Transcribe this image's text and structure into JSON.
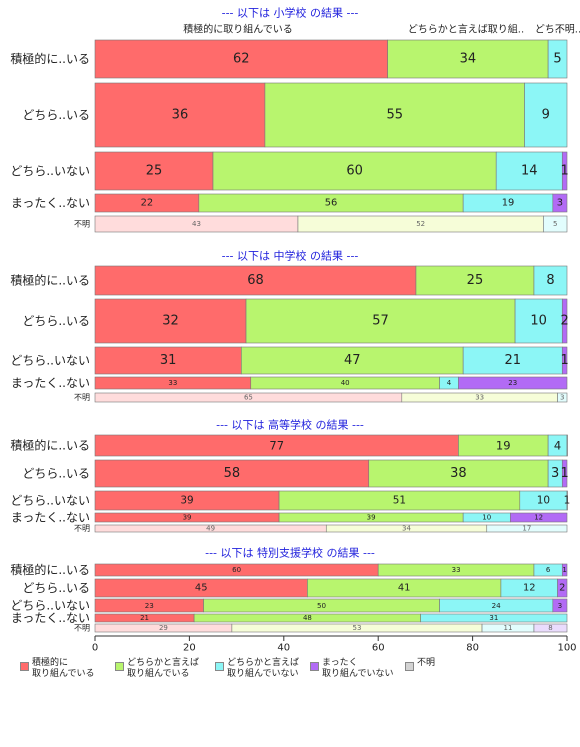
{
  "chart_data": {
    "type": "bar",
    "orientation": "horizontal",
    "stacked": true,
    "xlim": [
      0,
      100
    ],
    "x_ticks": [
      "0",
      "20",
      "40",
      "60",
      "80",
      "100"
    ],
    "categories": [
      "積極的に..いる",
      "どちら..いる",
      "どちら..いない",
      "まったく..ない",
      "不明"
    ],
    "series": [
      {
        "name": "積極的に\n取り組んでいる",
        "color": "#FF6B6B"
      },
      {
        "name": "どちらかと言えば\n取り組んでいる",
        "color": "#B8F56E"
      },
      {
        "name": "どちらかと言えば\n取り組んでいない",
        "color": "#8CF6F6"
      },
      {
        "name": "まったく\n取り組んでいない",
        "color": "#B26BF5"
      },
      {
        "name": "不明",
        "color": "#D3D3D3"
      }
    ],
    "panels": [
      {
        "title": "--- 以下は 小学校 の結果 ---",
        "column_labels": [
          "積極的に取り組んでいる",
          "どちらかと言えば取り組..",
          "どち..",
          "不明.."
        ],
        "rows": [
          {
            "label": "積極的に..いる",
            "values": [
              62,
              34,
              5,
              0
            ],
            "labels": [
              "62",
              "34",
              "5",
              ""
            ]
          },
          {
            "label": "どちら..いる",
            "values": [
              36,
              55,
              9,
              0
            ],
            "labels": [
              "36",
              "55",
              "9",
              ""
            ]
          },
          {
            "label": "どちら..いない",
            "values": [
              25,
              60,
              14,
              1
            ],
            "labels": [
              "25",
              "60",
              "14",
              "1"
            ]
          },
          {
            "label": "まったく..ない",
            "values": [
              22,
              56,
              19,
              3
            ],
            "labels": [
              "22",
              "56",
              "19",
              "3"
            ]
          },
          {
            "label": "不明",
            "values": [
              43,
              52,
              5,
              0
            ],
            "labels": [
              "43",
              "52",
              "5",
              ""
            ]
          }
        ]
      },
      {
        "title": "--- 以下は 中学校 の結果 ---",
        "rows": [
          {
            "label": "積極的に..いる",
            "values": [
              68,
              25,
              8,
              0
            ],
            "labels": [
              "68",
              "25",
              "8",
              ""
            ]
          },
          {
            "label": "どちら..いる",
            "values": [
              32,
              57,
              10,
              2
            ],
            "labels": [
              "32",
              "57",
              "10",
              "2"
            ]
          },
          {
            "label": "どちら..いない",
            "values": [
              31,
              47,
              21,
              1
            ],
            "labels": [
              "31",
              "47",
              "21",
              "1"
            ]
          },
          {
            "label": "まったく..ない",
            "values": [
              33,
              40,
              4,
              23
            ],
            "labels": [
              "33",
              "40",
              "4",
              "23"
            ]
          },
          {
            "label": "不明",
            "values": [
              65,
              33,
              3,
              0
            ],
            "labels": [
              "65",
              "33",
              "3",
              ""
            ]
          }
        ]
      },
      {
        "title": "--- 以下は 高等学校 の結果 ---",
        "rows": [
          {
            "label": "積極的に..いる",
            "values": [
              77,
              19,
              4,
              0.5
            ],
            "labels": [
              "77",
              "19",
              "4",
              ""
            ]
          },
          {
            "label": "どちら..いる",
            "values": [
              58,
              38,
              3,
              1
            ],
            "labels": [
              "58",
              "38",
              "3",
              "1"
            ]
          },
          {
            "label": "どちら..いない",
            "values": [
              39,
              51,
              10,
              1
            ],
            "labels": [
              "39",
              "51",
              "10",
              "1"
            ]
          },
          {
            "label": "まったく..ない",
            "values": [
              39,
              39,
              10,
              12
            ],
            "labels": [
              "39",
              "39",
              "10",
              "12"
            ]
          },
          {
            "label": "不明",
            "values": [
              49,
              34,
              17,
              0
            ],
            "labels": [
              "49",
              "34",
              "17",
              ""
            ]
          }
        ]
      },
      {
        "title": "--- 以下は 特別支援学校 の結果 ---",
        "rows": [
          {
            "label": "積極的に..いる",
            "values": [
              60,
              33,
              6,
              1
            ],
            "labels": [
              "60",
              "33",
              "6",
              "1"
            ]
          },
          {
            "label": "どちら..いる",
            "values": [
              45,
              41,
              12,
              2
            ],
            "labels": [
              "45",
              "41",
              "12",
              "2"
            ]
          },
          {
            "label": "どちら..いない",
            "values": [
              23,
              50,
              24,
              3
            ],
            "labels": [
              "23",
              "50",
              "24",
              "3"
            ]
          },
          {
            "label": "まったく..ない",
            "values": [
              21,
              48,
              31,
              0
            ],
            "labels": [
              "21",
              "48",
              "31",
              ""
            ]
          },
          {
            "label": "不明",
            "values": [
              29,
              53,
              11,
              8
            ],
            "labels": [
              "29",
              "53",
              "11",
              "8"
            ]
          }
        ]
      }
    ]
  }
}
